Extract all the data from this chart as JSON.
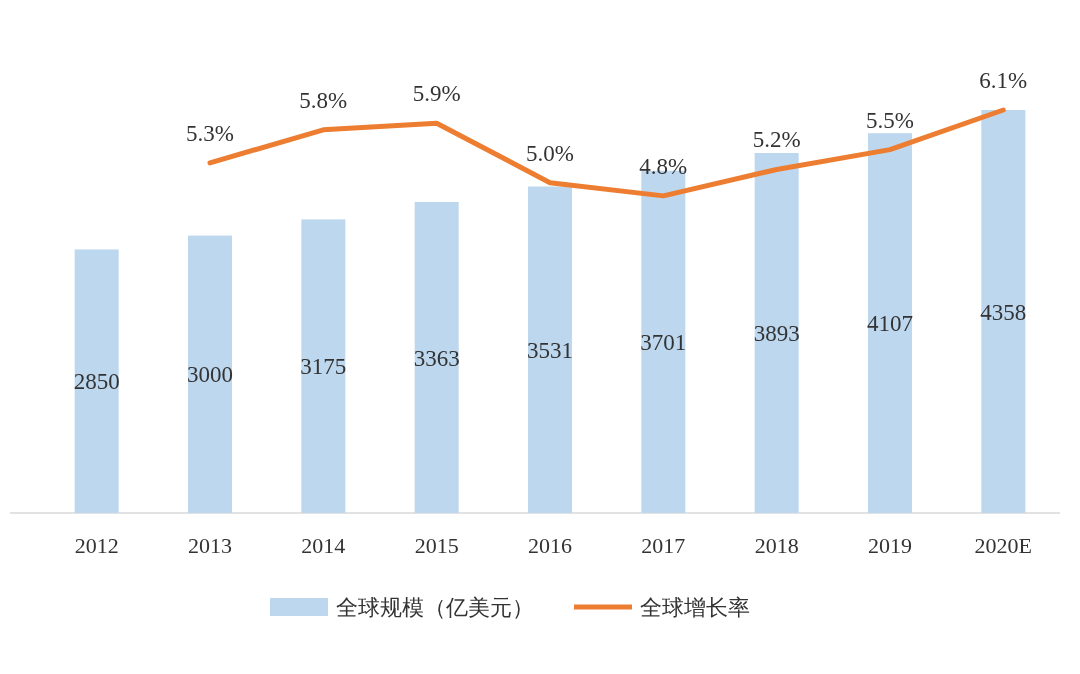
{
  "chart_data": {
    "type": "bar",
    "categories": [
      "2012",
      "2013",
      "2014",
      "2015",
      "2016",
      "2017",
      "2018",
      "2019",
      "2020E"
    ],
    "tick_labels": "x",
    "legend": "bottom",
    "series": [
      {
        "name": "全球规模（亿美元）",
        "color": "#bdd7ee",
        "values": [
          2850,
          3000,
          3175,
          3363,
          3531,
          3701,
          3893,
          4107,
          4358
        ],
        "value_labels": [
          "2850",
          "3000",
          "3175",
          "3363",
          "3531",
          "3701",
          "3893",
          "4107",
          "4358"
        ]
      },
      {
        "name": "全球增长率",
        "type": "line",
        "axis": "y2",
        "color": "#ed7d31",
        "values": [
          null,
          5.3,
          5.8,
          5.9,
          5.0,
          4.8,
          5.2,
          5.5,
          6.1
        ],
        "value_labels": [
          null,
          "5.3%",
          "5.8%",
          "5.9%",
          "5.0%",
          "4.8%",
          "5.2%",
          "5.5%",
          "6.1%"
        ]
      }
    ]
  }
}
